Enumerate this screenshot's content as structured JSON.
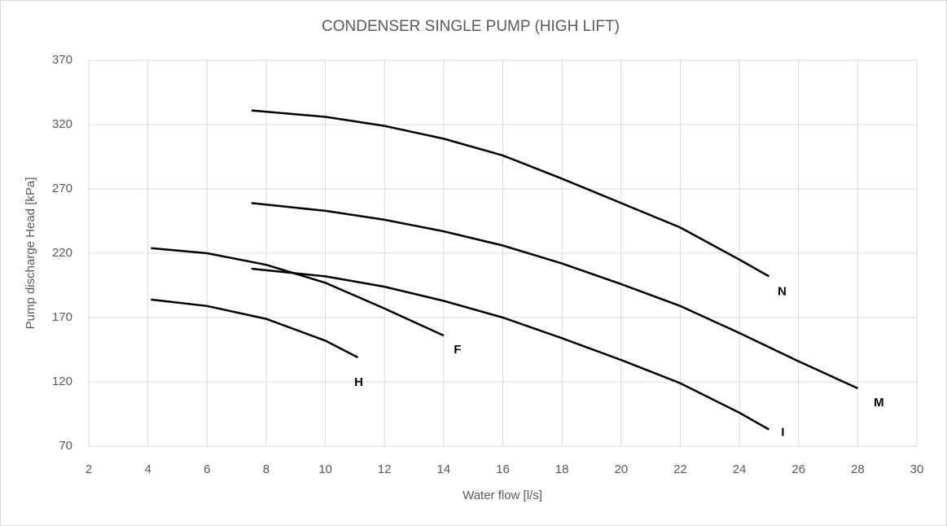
{
  "chart_data": {
    "type": "line",
    "title": "CONDENSER SINGLE PUMP (HIGH LIFT)",
    "x_label": "Water flow [l/s]",
    "y_label": "Pump discharge Head [kPa]",
    "xlim": [
      2,
      30
    ],
    "xticks": [
      2,
      4,
      6,
      8,
      10,
      12,
      14,
      16,
      18,
      20,
      22,
      24,
      26,
      28,
      30
    ],
    "ylim": [
      70,
      370
    ],
    "yticks": [
      70,
      120,
      170,
      220,
      270,
      320,
      370
    ],
    "grid": true,
    "series": [
      {
        "name": "N",
        "color": "#000000",
        "x": [
          7.5,
          10,
          12,
          14,
          16,
          18,
          20,
          22,
          24,
          25
        ],
        "values": [
          331,
          326,
          319,
          309,
          296,
          278,
          259,
          240,
          215,
          202
        ]
      },
      {
        "name": "M",
        "color": "#000000",
        "x": [
          7.5,
          10,
          12,
          14,
          16,
          18,
          20,
          22,
          24,
          26,
          28
        ],
        "values": [
          259,
          253,
          246,
          237,
          226,
          212,
          196,
          179,
          158,
          136,
          115
        ]
      },
      {
        "name": "I",
        "color": "#000000",
        "x": [
          7.5,
          10,
          12,
          14,
          16,
          18,
          20,
          22,
          24,
          25
        ],
        "values": [
          208,
          202,
          194,
          183,
          170,
          154,
          137,
          119,
          96,
          83
        ]
      },
      {
        "name": "F",
        "color": "#000000",
        "x": [
          4.1,
          6,
          8,
          10,
          12,
          14
        ],
        "values": [
          224,
          220,
          211,
          197,
          177,
          156
        ]
      },
      {
        "name": "H",
        "color": "#000000",
        "x": [
          4.1,
          6,
          8,
          10,
          11.1
        ],
        "values": [
          184,
          179,
          169,
          152,
          139
        ]
      }
    ]
  }
}
